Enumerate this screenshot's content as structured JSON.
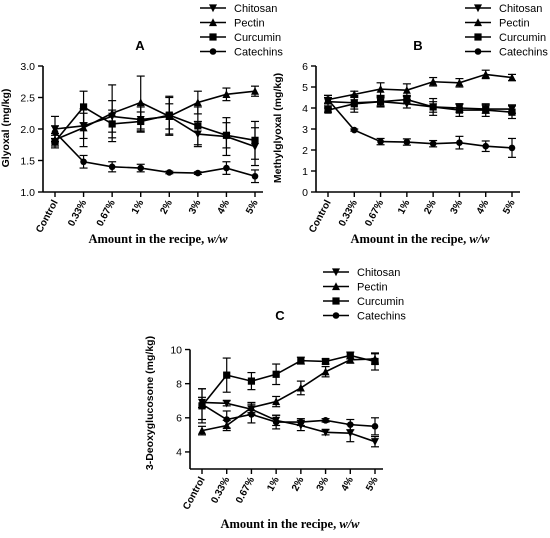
{
  "chart_data": [
    {
      "id": "A",
      "type": "line",
      "title": "A",
      "ylabel": "Glyoxal (mg/kg)",
      "xlabel": "Amount in the recipe, ",
      "xlabel_italic": "w/w",
      "categories": [
        "Control",
        "0.33%",
        "0.67%",
        "1%",
        "2%",
        "3%",
        "4%",
        "5%"
      ],
      "ylim": [
        1.0,
        3.0
      ],
      "yticks": [
        1.0,
        1.5,
        2.0,
        2.5,
        3.0
      ],
      "ytick_labels": [
        "1.0",
        "1.5",
        "2.0",
        "2.5",
        "3.0"
      ],
      "legend_position": "top-right",
      "series": [
        {
          "name": "Chitosan",
          "marker": "triangle-down",
          "values": [
            2.0,
            2.05,
            2.2,
            2.15,
            2.2,
            1.92,
            1.88,
            1.72
          ],
          "errors": [
            0.2,
            0.2,
            0.25,
            0.2,
            0.2,
            0.2,
            0.3,
            0.3
          ]
        },
        {
          "name": "Pectin",
          "marker": "triangle-up",
          "values": [
            1.83,
            2.02,
            2.25,
            2.42,
            2.2,
            2.42,
            2.55,
            2.6
          ],
          "errors": [
            0.1,
            0.3,
            0.45,
            0.42,
            0.3,
            0.18,
            0.1,
            0.08
          ]
        },
        {
          "name": "Curcumin",
          "marker": "square",
          "values": [
            1.8,
            2.35,
            2.08,
            2.12,
            2.22,
            2.05,
            1.9,
            1.82
          ],
          "errors": [
            0.1,
            0.25,
            0.22,
            0.15,
            0.3,
            0.3,
            0.2,
            0.3
          ]
        },
        {
          "name": "Catechins",
          "marker": "circle",
          "values": [
            1.95,
            1.48,
            1.4,
            1.38,
            1.31,
            1.3,
            1.38,
            1.25
          ],
          "errors": [
            0.1,
            0.1,
            0.08,
            0.06,
            0.02,
            0.02,
            0.1,
            0.1
          ]
        }
      ]
    },
    {
      "id": "B",
      "type": "line",
      "title": "B",
      "ylabel": "Methylglyoxal (mg/kg)",
      "xlabel": "Amount in the recipe, ",
      "xlabel_italic": "w/w",
      "categories": [
        "Control",
        "0.33%",
        "0.67%",
        "1%",
        "2%",
        "3%",
        "4%",
        "5%"
      ],
      "ylim": [
        0,
        6
      ],
      "yticks": [
        0,
        1,
        2,
        3,
        4,
        5,
        6
      ],
      "ytick_labels": [
        "0",
        "1",
        "2",
        "3",
        "4",
        "5",
        "6"
      ],
      "legend_position": "top-right",
      "series": [
        {
          "name": "Chitosan",
          "marker": "triangle-down",
          "values": [
            4.3,
            4.25,
            4.3,
            4.2,
            4.05,
            4.0,
            3.95,
            3.95
          ],
          "errors": [
            0.2,
            0.3,
            0.2,
            0.2,
            0.25,
            0.2,
            0.2,
            0.2
          ]
        },
        {
          "name": "Pectin",
          "marker": "triangle-up",
          "values": [
            4.4,
            4.65,
            4.9,
            4.85,
            5.25,
            5.2,
            5.6,
            5.45
          ],
          "errors": [
            0.2,
            0.15,
            0.3,
            0.3,
            0.2,
            0.2,
            0.2,
            0.15
          ]
        },
        {
          "name": "Curcumin",
          "marker": "square",
          "values": [
            3.9,
            4.2,
            4.3,
            4.4,
            4.05,
            3.9,
            3.9,
            3.8
          ],
          "errors": [
            0.1,
            0.4,
            0.25,
            0.2,
            0.4,
            0.3,
            0.3,
            0.3
          ]
        },
        {
          "name": "Catechins",
          "marker": "circle",
          "values": [
            4.4,
            2.95,
            2.4,
            2.38,
            2.3,
            2.35,
            2.18,
            2.1
          ],
          "errors": [
            0.2,
            0.05,
            0.15,
            0.15,
            0.15,
            0.3,
            0.25,
            0.45
          ]
        }
      ]
    },
    {
      "id": "C",
      "type": "line",
      "title": "C",
      "ylabel": "3-Deoxyglucosone (mg/kg)",
      "xlabel": "Amount in the recipe, ",
      "xlabel_italic": "w/w",
      "categories": [
        "Control",
        "0.33%",
        "0.67%",
        "1%",
        "2%",
        "3%",
        "4%",
        "5%"
      ],
      "ylim": [
        3,
        10.5
      ],
      "yticks": [
        4,
        6,
        8,
        10
      ],
      "ytick_labels": [
        "4",
        "6",
        "8",
        "10"
      ],
      "legend_position": "top-right",
      "series": [
        {
          "name": "Chitosan",
          "marker": "triangle-down",
          "values": [
            6.9,
            6.85,
            6.5,
            5.85,
            5.55,
            5.15,
            5.1,
            4.6
          ],
          "errors": [
            0.3,
            0.15,
            0.3,
            0.3,
            0.3,
            0.15,
            0.5,
            0.3
          ]
        },
        {
          "name": "Pectin",
          "marker": "triangle-up",
          "values": [
            5.25,
            5.55,
            6.6,
            6.95,
            7.75,
            8.7,
            9.4,
            9.45
          ],
          "errors": [
            0.25,
            0.3,
            0.3,
            0.3,
            0.4,
            0.3,
            0.2,
            0.3
          ]
        },
        {
          "name": "Curcumin",
          "marker": "square",
          "values": [
            6.7,
            8.5,
            8.15,
            8.55,
            9.35,
            9.3,
            9.65,
            9.3
          ],
          "errors": [
            1.0,
            1.0,
            0.5,
            0.6,
            0.2,
            0.15,
            0.2,
            0.5
          ]
        },
        {
          "name": "Catechins",
          "marker": "circle",
          "values": [
            6.8,
            5.9,
            6.2,
            5.75,
            5.75,
            5.85,
            5.6,
            5.5
          ],
          "errors": [
            0.9,
            0.5,
            0.5,
            0.4,
            0.2,
            0.1,
            0.3,
            0.5
          ]
        }
      ]
    }
  ]
}
